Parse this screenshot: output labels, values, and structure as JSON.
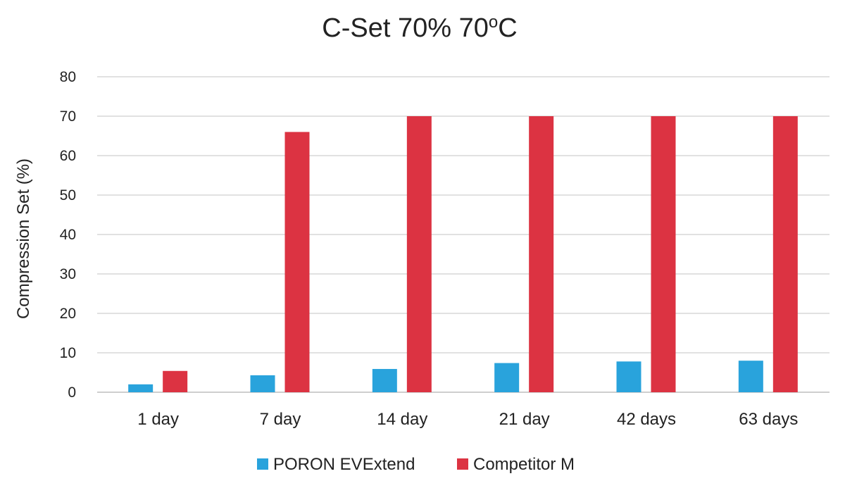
{
  "chart_data": {
    "type": "bar",
    "title_main": "C-Set 70% 70",
    "title_sup": "o",
    "title_end": "C",
    "ylabel": "Compression Set (%)",
    "xlabel": "",
    "ylim": [
      0,
      80
    ],
    "yticks": [
      0,
      10,
      20,
      30,
      40,
      50,
      60,
      70,
      80
    ],
    "grid": true,
    "legend_position": "bottom",
    "categories": [
      "1 day",
      "7 day",
      "14 day",
      "21 day",
      "42 days",
      "63 days"
    ],
    "series": [
      {
        "name": "PORON EVExtend",
        "color": "#29a3dc",
        "values": [
          2.0,
          4.3,
          5.9,
          7.4,
          7.8,
          8.0
        ]
      },
      {
        "name": "Competitor M",
        "color": "#dc3342",
        "values": [
          5.4,
          66.0,
          70.0,
          70.0,
          70.0,
          70.0
        ]
      }
    ]
  }
}
